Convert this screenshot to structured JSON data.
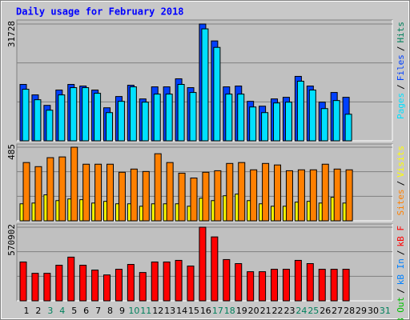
{
  "legend_separator": "/",
  "chart_data": [
    {
      "type": "bar",
      "title": "Daily usage for February 2018",
      "ylim": [
        0,
        31728
      ],
      "yticks": [
        31728
      ],
      "series": [
        {
          "name": "Hits",
          "color": "#00805c",
          "values": [
            null,
            null,
            null,
            null,
            null,
            null,
            null,
            null,
            null,
            null,
            null,
            null,
            null,
            null,
            null,
            null,
            null,
            null,
            null,
            null,
            null,
            null,
            null,
            null,
            null,
            null,
            null,
            null,
            null,
            null,
            null
          ]
        },
        {
          "name": "Files",
          "color": "#0040ff",
          "values": [
            15317,
            12472,
            9628,
            13785,
            15317,
            14879,
            13785,
            8971,
            12035,
            15098,
            11378,
            14660,
            14660,
            16849,
            14442,
            31728,
            27133,
            14660,
            14879,
            10722,
            9409,
            11378,
            11816,
            17505,
            14879,
            10503,
            13129,
            11816,
            null,
            null,
            null
          ]
        },
        {
          "name": "Pages",
          "color": "#00e0ff",
          "values": [
            14000,
            11160,
            8315,
            12470,
            14440,
            14440,
            12910,
            7660,
            10720,
            14660,
            10500,
            12690,
            12690,
            15320,
            13130,
            30410,
            25380,
            12690,
            12690,
            9190,
            7660,
            10280,
            10500,
            16190,
            13790,
            8750,
            10940,
            7220,
            null,
            null,
            null
          ]
        }
      ]
    },
    {
      "type": "bar",
      "ylim": [
        0,
        485
      ],
      "yticks": [
        485
      ],
      "series": [
        {
          "name": "Visits",
          "color": "#ffff00",
          "values": [
            112,
            117,
            171,
            133,
            144,
            139,
            117,
            128,
            112,
            112,
            96,
            112,
            112,
            112,
            96,
            149,
            133,
            165,
            176,
            133,
            112,
            96,
            96,
            123,
            128,
            117,
            155,
            117,
            null,
            null,
            null
          ]
        },
        {
          "name": "Sites",
          "color": "#ff8000",
          "values": [
            384,
            357,
            416,
            421,
            485,
            373,
            373,
            373,
            320,
            341,
            325,
            442,
            384,
            314,
            282,
            320,
            330,
            378,
            384,
            336,
            378,
            368,
            330,
            336,
            336,
            373,
            341,
            336,
            null,
            null,
            null
          ]
        }
      ]
    },
    {
      "type": "bar",
      "ylim": [
        0,
        570902
      ],
      "yticks": [
        570902
      ],
      "categories": [
        1,
        2,
        3,
        4,
        5,
        6,
        7,
        8,
        9,
        10,
        11,
        12,
        13,
        14,
        15,
        16,
        17,
        18,
        19,
        20,
        21,
        22,
        23,
        24,
        25,
        26,
        27,
        28,
        29,
        30,
        31
      ],
      "weekend": [
        false,
        false,
        true,
        true,
        false,
        false,
        false,
        false,
        false,
        true,
        true,
        false,
        false,
        false,
        false,
        false,
        true,
        true,
        false,
        false,
        false,
        false,
        false,
        true,
        true,
        false,
        false,
        false,
        false,
        false,
        true
      ],
      "series": [
        {
          "name": "kB F",
          "color": "#ff0000",
          "values": [
            301133,
            213302,
            213302,
            276039,
            338774,
            276039,
            238396,
            200755,
            244672,
            282311,
            219575,
            301133,
            301133,
            313679,
            269765,
            570902,
            495614,
            319953,
            288585,
            225849,
            225849,
            244672,
            244672,
            313679,
            288585,
            244672,
            244672,
            244672,
            null,
            null,
            null
          ]
        },
        {
          "name": "kB In",
          "color": "#0080ff",
          "values": [
            null,
            null,
            null,
            null,
            null,
            null,
            null,
            null,
            null,
            null,
            null,
            null,
            null,
            null,
            null,
            null,
            null,
            null,
            null,
            null,
            null,
            null,
            null,
            null,
            null,
            null,
            null,
            null,
            null,
            null,
            null
          ]
        },
        {
          "name": "kB Out",
          "color": "#00c000",
          "values": [
            null,
            null,
            null,
            null,
            null,
            null,
            null,
            null,
            null,
            null,
            null,
            null,
            null,
            null,
            null,
            null,
            null,
            null,
            null,
            null,
            null,
            null,
            null,
            null,
            null,
            null,
            null,
            null,
            null,
            null,
            null
          ]
        }
      ]
    }
  ]
}
